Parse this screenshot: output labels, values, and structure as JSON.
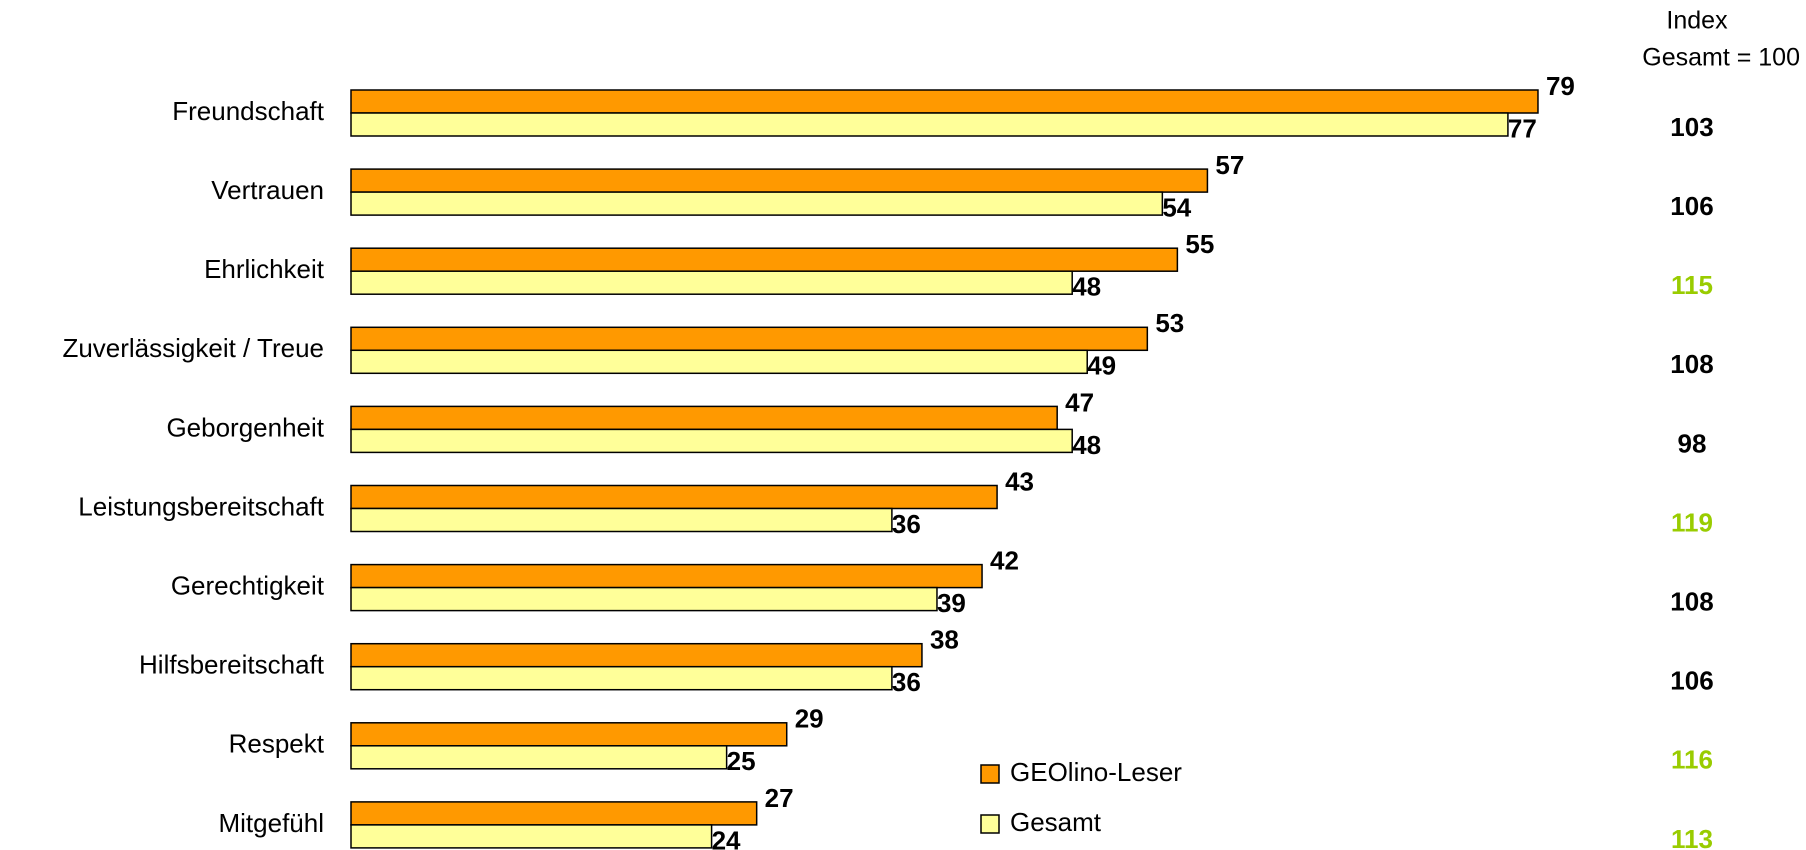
{
  "chart_data": {
    "type": "hbar",
    "categories": [
      "Freundschaft",
      "Vertrauen",
      "Ehrlichkeit",
      "Zuverlässigkeit / Treue",
      "Geborgenheit",
      "Leistungsbereitschaft",
      "Gerechtigkeit",
      "Hilfsbereitschaft",
      "Respekt",
      "Mitgefühl"
    ],
    "series": [
      {
        "name": "GEOlino-Leser",
        "color": "#ff9900",
        "values": [
          79,
          57,
          55,
          53,
          47,
          43,
          42,
          38,
          29,
          27
        ]
      },
      {
        "name": "Gesamt",
        "color": "#ffff99",
        "values": [
          77,
          54,
          48,
          49,
          48,
          36,
          39,
          36,
          25,
          24
        ]
      }
    ],
    "xlim": [
      0,
      80
    ],
    "index_header": [
      "Index",
      "Gesamt = 100"
    ],
    "index_values": [
      103,
      106,
      115,
      108,
      98,
      119,
      108,
      106,
      116,
      113
    ],
    "index_colors": [
      "#000000",
      "#000000",
      "#99cc00",
      "#000000",
      "#000000",
      "#99cc00",
      "#000000",
      "#000000",
      "#99cc00",
      "#99cc00"
    ]
  }
}
